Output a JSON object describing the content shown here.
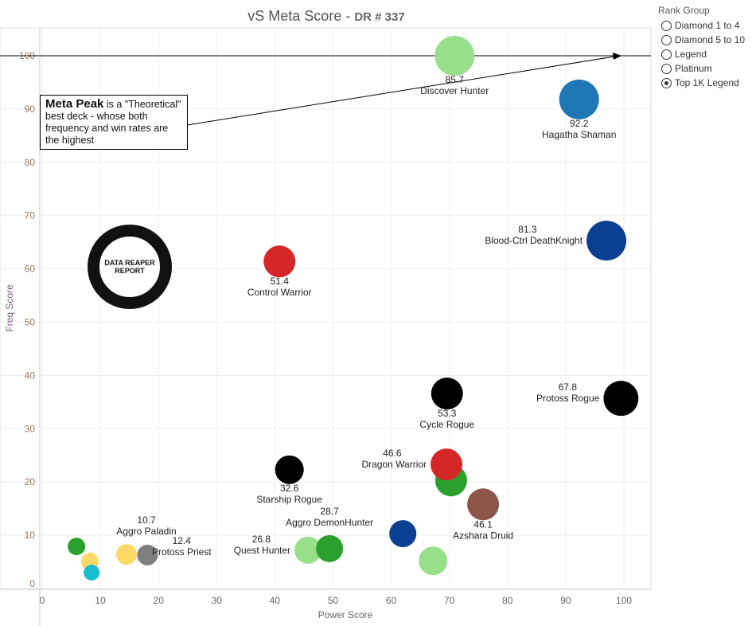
{
  "chart_data": {
    "type": "scatter",
    "title": "vS Meta Score",
    "subtitle": "DR # 337",
    "xlabel": "Power Score",
    "ylabel": "Freq Score",
    "xlim": [
      0,
      105
    ],
    "ylim": [
      -1,
      105
    ],
    "xticks": [
      0,
      10,
      20,
      30,
      40,
      50,
      60,
      70,
      80,
      90,
      100
    ],
    "yticks": [
      0,
      10,
      20,
      30,
      40,
      50,
      60,
      70,
      80,
      90,
      100
    ],
    "reference_line": {
      "y": 100
    },
    "points": [
      {
        "x": 70.9,
        "y": 100,
        "score": "85.7",
        "name": "Discover Hunter",
        "color": "#98df8a",
        "size": 25,
        "label_position": "below"
      },
      {
        "x": 92.3,
        "y": 91.8,
        "score": "92.2",
        "name": "Hagatha Shaman",
        "color": "#1f77b4",
        "size": 25,
        "label_position": "below"
      },
      {
        "x": 97,
        "y": 65.3,
        "score": "81.3",
        "name": "Blood-Ctrl DeathKnight",
        "color": "#0a3f91",
        "size": 25,
        "label_position": "left"
      },
      {
        "x": 40.8,
        "y": 61.4,
        "score": "51.4",
        "name": "Control Warrior",
        "color": "#d62728",
        "size": 20,
        "label_position": "below"
      },
      {
        "x": 69.6,
        "y": 36.6,
        "score": "53.3",
        "name": "Cycle Rogue",
        "color": "#000000",
        "size": 20,
        "label_position": "below"
      },
      {
        "x": 99.5,
        "y": 35.7,
        "score": "67.8",
        "name": "Protoss Rogue",
        "color": "#000000",
        "size": 22,
        "label_position": "left"
      },
      {
        "x": 70.3,
        "y": 20.3,
        "score": null,
        "name": null,
        "color": "#2ca02c",
        "size": 20
      },
      {
        "x": 69.5,
        "y": 23.3,
        "score": "46.6",
        "name": "Dragon Warrior",
        "color": "#d62728",
        "size": 20,
        "label_position": "left"
      },
      {
        "x": 42.5,
        "y": 22.3,
        "score": "32.6",
        "name": "Starship Rogue",
        "color": "#000000",
        "size": 18,
        "label_position": "below"
      },
      {
        "x": 75.8,
        "y": 15.8,
        "score": "46.1",
        "name": "Azshara Druid",
        "color": "#8c564b",
        "size": 20,
        "label_position": "below"
      },
      {
        "x": 62,
        "y": 10.3,
        "score": null,
        "name": null,
        "color": "#0a3f91",
        "size": 17
      },
      {
        "x": 67.2,
        "y": 5.2,
        "score": null,
        "name": null,
        "color": "#98df8a",
        "size": 18
      },
      {
        "x": 45.7,
        "y": 7.2,
        "score": "26.8",
        "name": "Quest Hunter",
        "color": "#98df8a",
        "size": 17,
        "label_position": "left"
      },
      {
        "x": 49.4,
        "y": 7.5,
        "score": "28.7",
        "name": "Aggro DemonHunter",
        "color": "#2ca02c",
        "size": 17,
        "label_position": "above"
      },
      {
        "x": 14.5,
        "y": 6.4,
        "score": "10.7",
        "name": "Aggro Paladin",
        "color": "#ffd966",
        "size": 13,
        "label_position": "above"
      },
      {
        "x": 18.1,
        "y": 6.3,
        "score": "12.4",
        "name": "Protoss Priest",
        "color": "#7f7f7f",
        "size": 13,
        "label_position": "right"
      },
      {
        "x": 5.9,
        "y": 7.9,
        "score": null,
        "name": null,
        "color": "#2ca02c",
        "size": 11
      },
      {
        "x": 8.2,
        "y": 5.1,
        "score": null,
        "name": null,
        "color": "#ffd966",
        "size": 11
      },
      {
        "x": 8.5,
        "y": 3,
        "score": null,
        "name": null,
        "color": "#17becf",
        "size": 10
      }
    ],
    "annotation": {
      "bold": "Meta Peak",
      "text": " is a \"Theoretical\" best deck - whose both frequency and win rates are the highest"
    }
  },
  "logo_text": "DATA REAPER REPORT",
  "legend": {
    "title": "Rank Group",
    "options": [
      {
        "label": "Diamond 1 to 4",
        "selected": false
      },
      {
        "label": "Diamond 5 to 10",
        "selected": false
      },
      {
        "label": "Legend",
        "selected": false
      },
      {
        "label": "Platinum",
        "selected": false
      },
      {
        "label": "Top 1K Legend",
        "selected": true
      }
    ]
  }
}
